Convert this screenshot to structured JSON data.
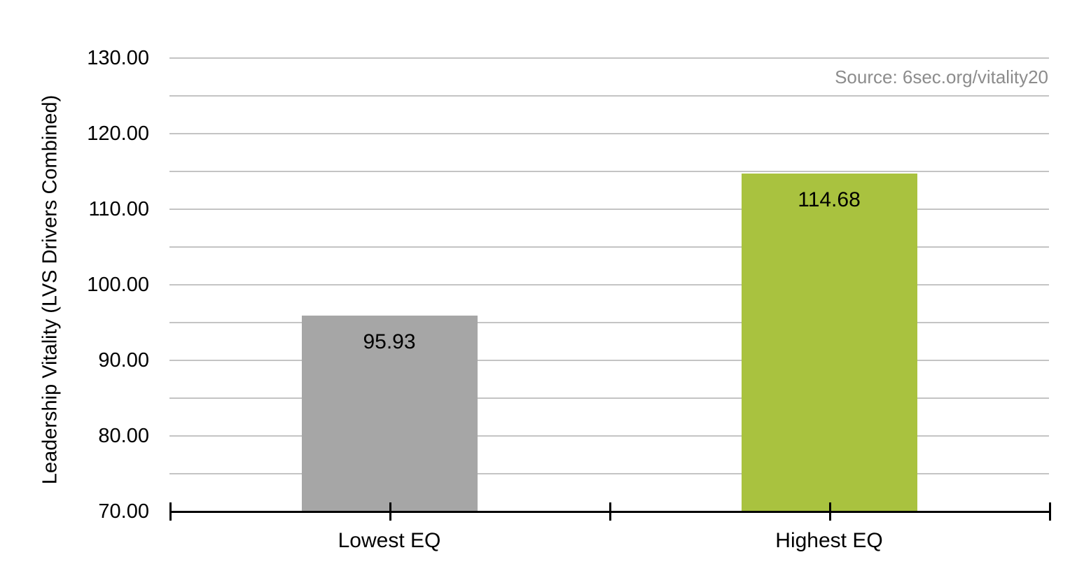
{
  "chart_data": {
    "type": "bar",
    "title": "",
    "categories": [
      "Lowest EQ",
      "Highest EQ"
    ],
    "values": [
      95.93,
      114.68
    ],
    "value_labels": [
      "95.93",
      "114.68"
    ],
    "bar_colors": [
      "#A6A6A6",
      "#A9C23F"
    ],
    "xlabel": "",
    "ylabel": "Leadership Vitality (LVS Drivers Combined)",
    "ylim": [
      70,
      130
    ],
    "y_major_tick_values": [
      70,
      80,
      90,
      100,
      110,
      120,
      130
    ],
    "y_tick_labels": [
      "70.00",
      "80.00",
      "90.00",
      "100.00",
      "110.00",
      "120.00",
      "130.00"
    ],
    "y_gridline_step": 5,
    "grid": "horizontal",
    "legend_position": "none",
    "source_note": "Source: 6sec.org/vitality20"
  },
  "style": {
    "gridline_color": "#C4C4C4",
    "axis_color": "#000000",
    "label_color": "#000000",
    "source_text_color": "#8C8C8C",
    "background_color": "#FFFFFF"
  }
}
